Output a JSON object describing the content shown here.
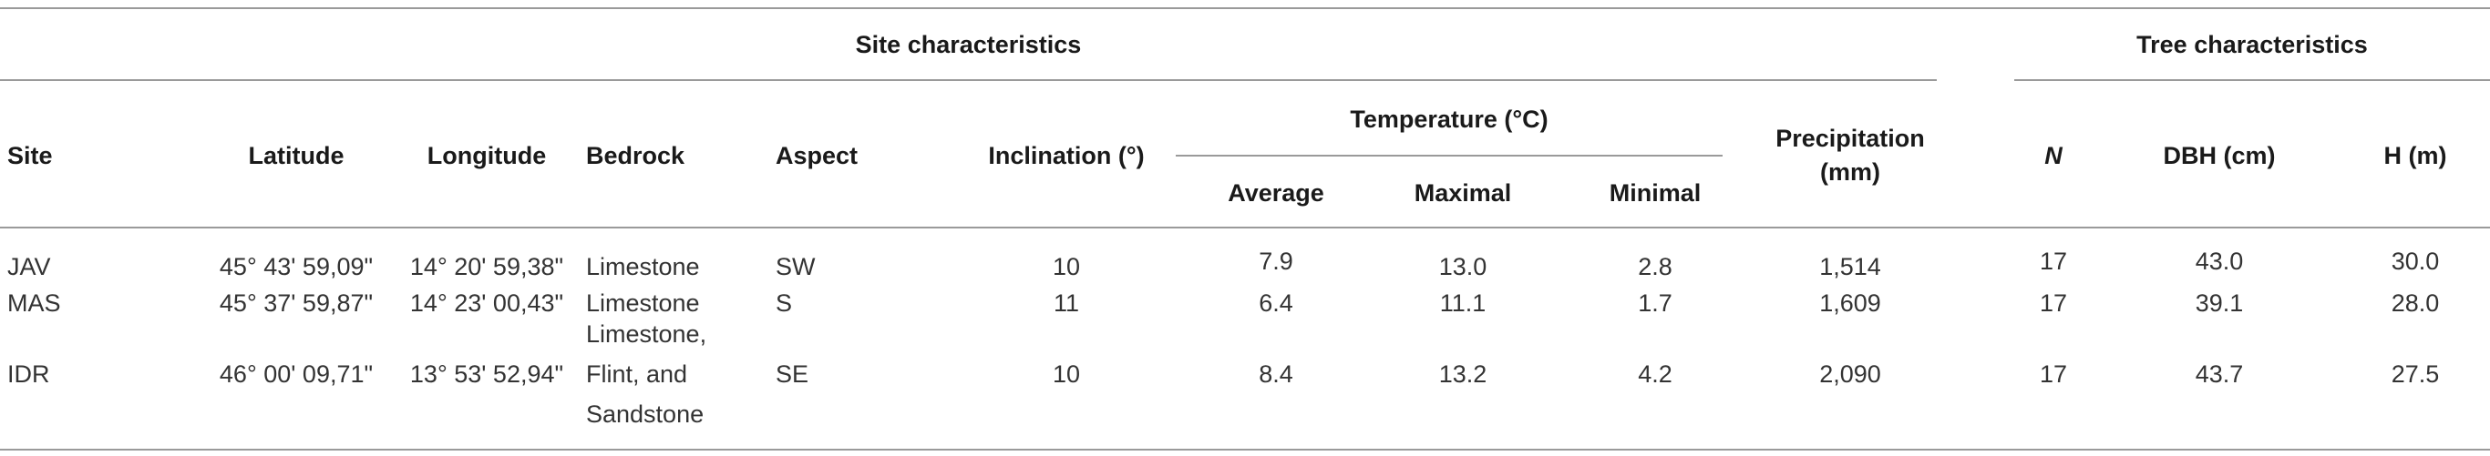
{
  "headers": {
    "group_site": "Site characteristics",
    "group_tree": "Tree characteristics",
    "site": "Site",
    "latitude": "Latitude",
    "longitude": "Longitude",
    "bedrock": "Bedrock",
    "aspect": "Aspect",
    "inclination": "Inclination (°)",
    "temperature": "Temperature (°C)",
    "average": "Average",
    "maximal": "Maximal",
    "minimal": "Minimal",
    "precipitation_l1": "Precipitation",
    "precipitation_l2": "(mm)",
    "n": "N",
    "dbh": "DBH (cm)",
    "h": "H (m)"
  },
  "rows": [
    {
      "site": "JAV",
      "latitude": "45° 43' 59,09\"",
      "longitude": "14° 20' 59,38\"",
      "bedrock": [
        "Limestone"
      ],
      "aspect": "SW",
      "inclination": "10",
      "average": "7.9",
      "maximal": "13.0",
      "minimal": "2.8",
      "precipitation": "1,514",
      "n": "17",
      "dbh": "43.0",
      "h": "30.0"
    },
    {
      "site": "MAS",
      "latitude": "45° 37' 59,87\"",
      "longitude": "14° 23' 00,43\"",
      "bedrock": [
        "Limestone"
      ],
      "aspect": "S",
      "inclination": "11",
      "average": "6.4",
      "maximal": "11.1",
      "minimal": "1.7",
      "precipitation": "1,609",
      "n": "17",
      "dbh": "39.1",
      "h": "28.0"
    },
    {
      "site": "IDR",
      "latitude": "46° 00' 09,71\"",
      "longitude": "13° 53' 52,94\"",
      "bedrock": [
        "Limestone,",
        "Flint, and",
        "Sandstone"
      ],
      "aspect": "SE",
      "inclination": "10",
      "average": "8.4",
      "maximal": "13.2",
      "minimal": "4.2",
      "precipitation": "2,090",
      "n": "17",
      "dbh": "43.7",
      "h": "27.5"
    }
  ]
}
